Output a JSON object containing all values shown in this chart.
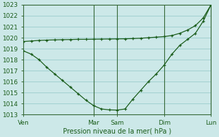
{
  "xlabel": "Pression niveau de la mer( hPa )",
  "ylim": [
    1013,
    1023
  ],
  "yticks": [
    1013,
    1014,
    1015,
    1016,
    1017,
    1018,
    1019,
    1020,
    1021,
    1022,
    1023
  ],
  "xtick_labels": [
    "Ven",
    "Mar",
    "Sam",
    "Dim",
    "Lun"
  ],
  "xtick_positions": [
    0,
    9,
    12,
    18,
    24
  ],
  "background_color": "#cce8e8",
  "grid_color": "#99cccc",
  "line_color": "#1a5c1a",
  "series1_x": [
    0,
    1,
    2,
    3,
    4,
    5,
    6,
    7,
    8,
    9,
    10,
    11,
    12,
    13,
    14,
    15,
    16,
    17,
    18,
    19,
    20,
    21,
    22,
    23,
    24
  ],
  "series1_y": [
    1019.65,
    1019.7,
    1019.75,
    1019.78,
    1019.8,
    1019.82,
    1019.83,
    1019.85,
    1019.85,
    1019.86,
    1019.87,
    1019.88,
    1019.89,
    1019.9,
    1019.92,
    1019.95,
    1020.0,
    1020.05,
    1020.1,
    1020.2,
    1020.4,
    1020.7,
    1021.1,
    1021.8,
    1023.0
  ],
  "series2_x": [
    0,
    1,
    2,
    3,
    4,
    5,
    6,
    7,
    8,
    9,
    10,
    11,
    12,
    13,
    14,
    15,
    16,
    17,
    18,
    19,
    20,
    21,
    22,
    23,
    24
  ],
  "series2_y": [
    1018.8,
    1018.5,
    1018.0,
    1017.3,
    1016.7,
    1016.1,
    1015.5,
    1014.9,
    1014.3,
    1013.8,
    1013.5,
    1013.42,
    1013.4,
    1013.5,
    1014.4,
    1015.2,
    1016.0,
    1016.7,
    1017.5,
    1018.5,
    1019.3,
    1019.85,
    1020.4,
    1021.5,
    1023.0
  ],
  "vline_positions": [
    9,
    12,
    18,
    24
  ]
}
